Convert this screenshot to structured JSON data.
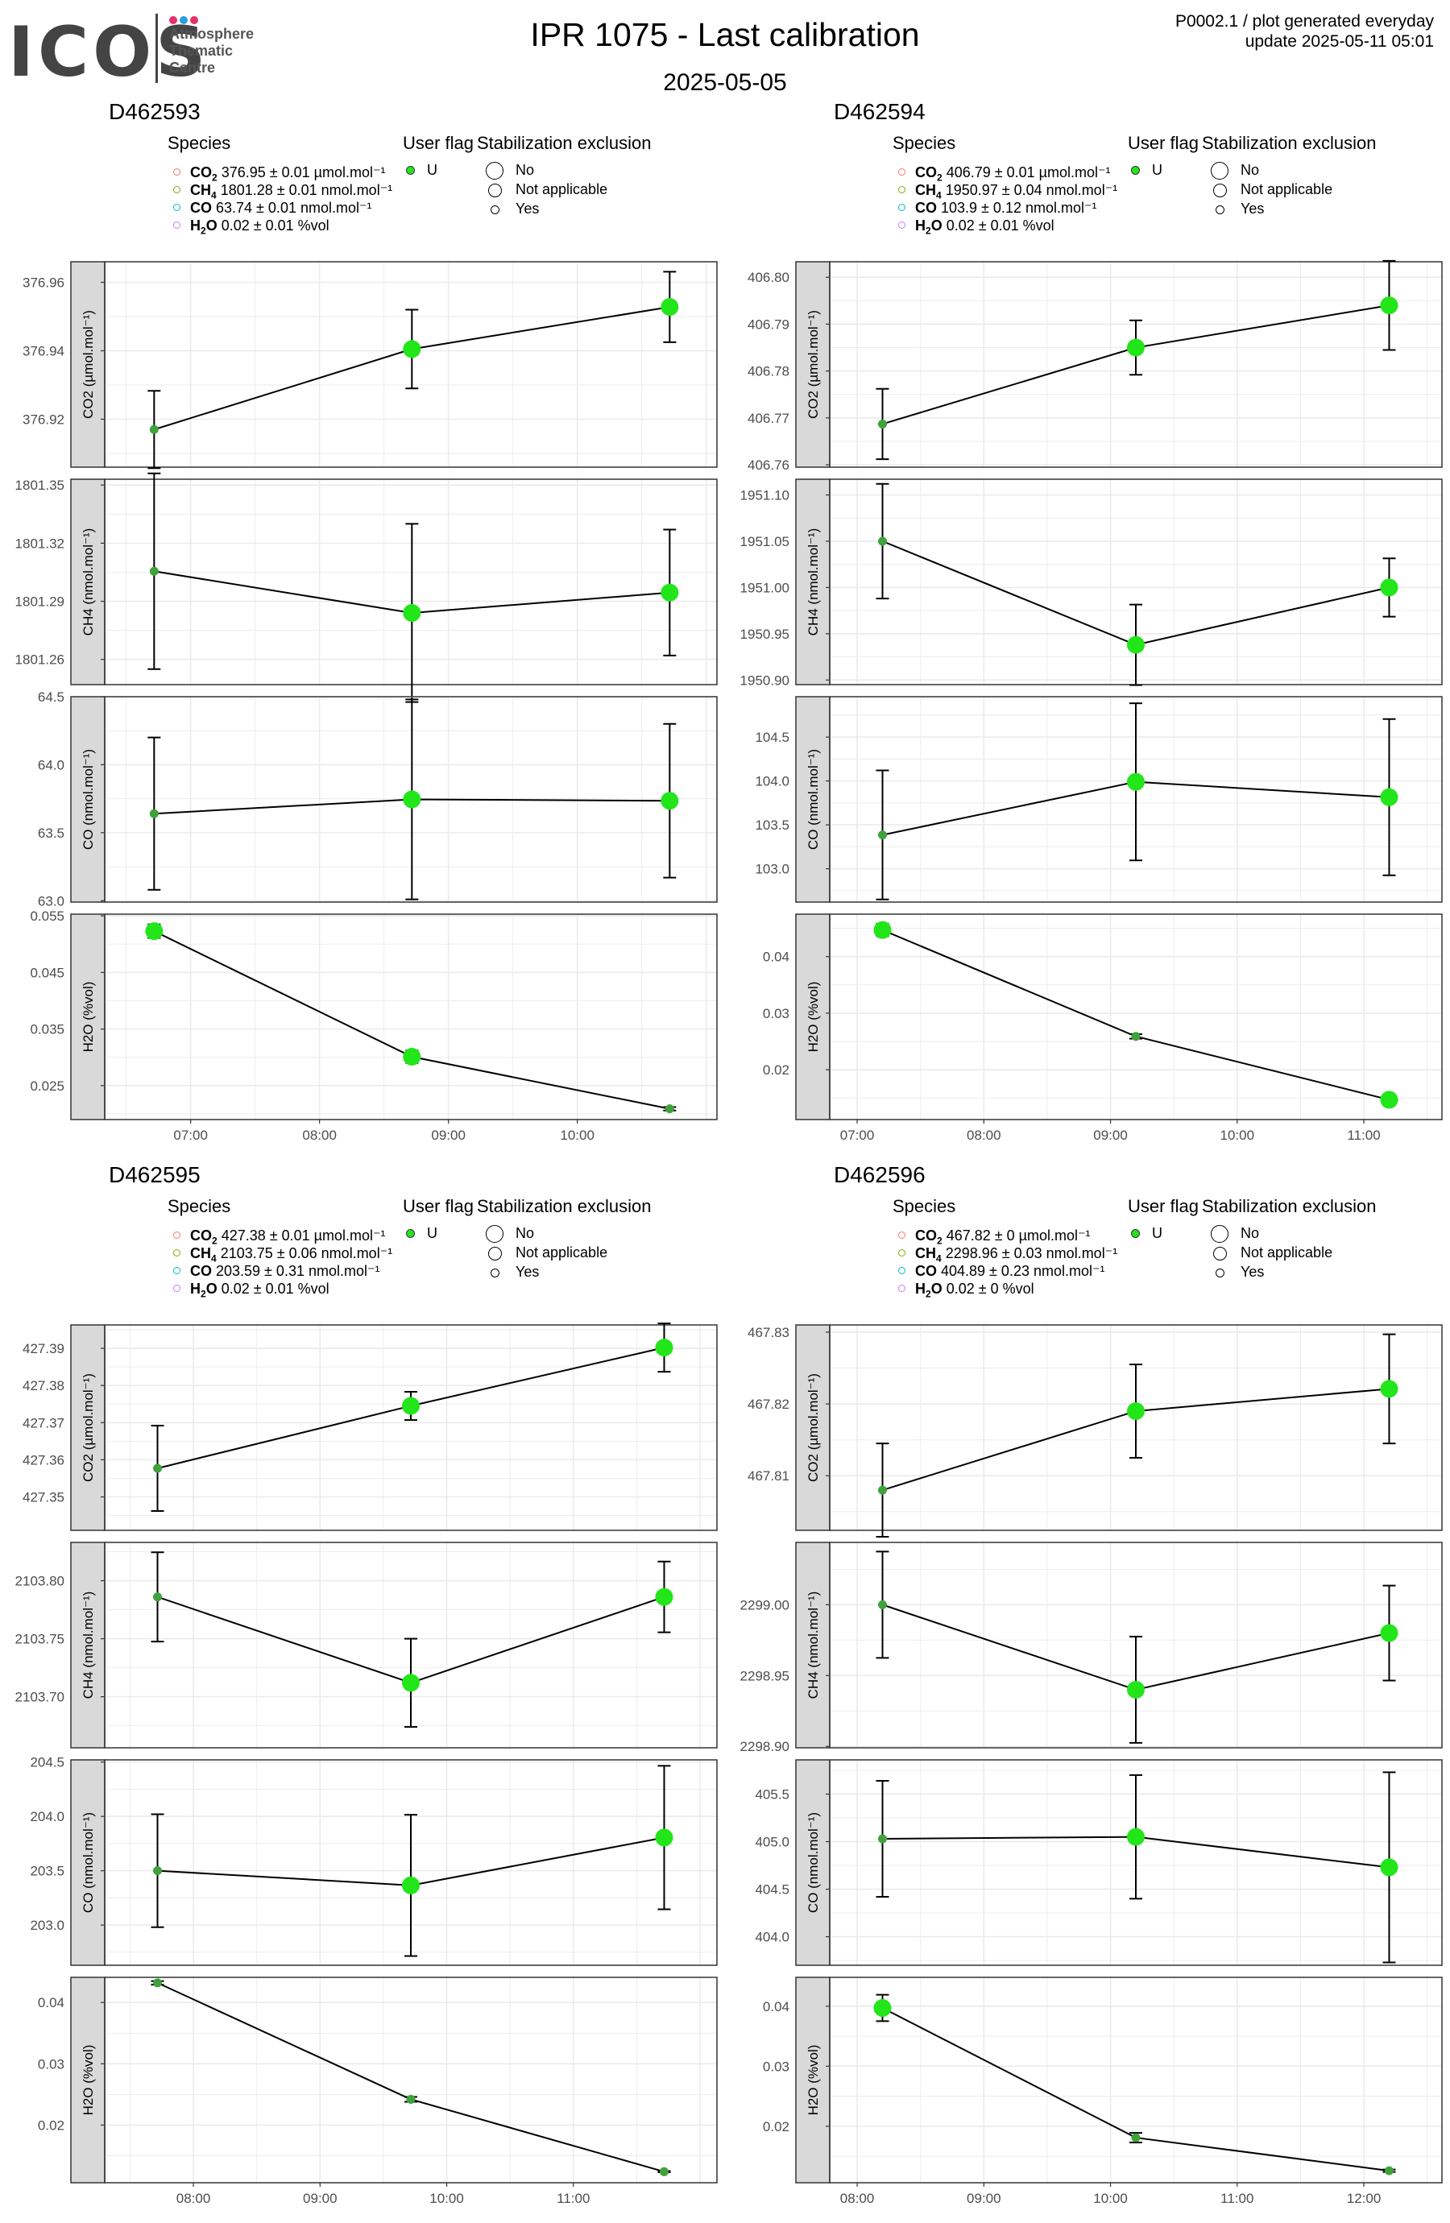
{
  "header": {
    "logo_word": "ICOS",
    "logo_lines": [
      "Atmosphere",
      "Thematic",
      "Centre"
    ],
    "logo_dot_colors": [
      "#e6306e",
      "#2b9be0",
      "#e6306e"
    ],
    "title": "IPR 1075 - Last calibration",
    "date": "2025-05-05",
    "top_right_1": "P0002.1 / plot generated everyday",
    "top_right_2": "update  2025-05-11 05:01"
  },
  "legend_labels": {
    "species": "Species",
    "user_flag": "User flag",
    "stabilization": "Stabilization exclusion",
    "user_flag_value": "U",
    "stab_items": [
      "No",
      "Not applicable",
      "Yes"
    ]
  },
  "colors": {
    "co2": "#f8766d",
    "ch4": "#7cae00",
    "co": "#00bfc4",
    "h2o": "#c77cff",
    "point_large": "#22e61a",
    "point_small": "#3fa23a",
    "strip": "#d9d9d9",
    "grid": "#ebebeb"
  },
  "panels": [
    {
      "id": "D462593",
      "legend": [
        {
          "species": "CO2",
          "value": "376.95 ± 0.01",
          "unit": "µmol.mol⁻¹"
        },
        {
          "species": "CH4",
          "value": "1801.28 ± 0.01",
          "unit": "nmol.mol⁻¹"
        },
        {
          "species": "CO",
          "value": "63.74 ± 0.01",
          "unit": "nmol.mol⁻¹"
        },
        {
          "species": "H2O",
          "value": "0.02 ± 0.01",
          "unit": "%vol"
        }
      ],
      "x_ticks": [
        "07:00",
        "08:00",
        "09:00",
        "10:00"
      ]
    },
    {
      "id": "D462594",
      "legend": [
        {
          "species": "CO2",
          "value": "406.79 ± 0.01",
          "unit": "µmol.mol⁻¹"
        },
        {
          "species": "CH4",
          "value": "1950.97 ± 0.04",
          "unit": "nmol.mol⁻¹"
        },
        {
          "species": "CO",
          "value": "103.9 ± 0.12",
          "unit": "nmol.mol⁻¹"
        },
        {
          "species": "H2O",
          "value": "0.02 ± 0.01",
          "unit": "%vol"
        }
      ],
      "x_ticks": [
        "07:00",
        "08:00",
        "09:00",
        "10:00",
        "11:00"
      ]
    },
    {
      "id": "D462595",
      "legend": [
        {
          "species": "CO2",
          "value": "427.38 ± 0.01",
          "unit": "µmol.mol⁻¹"
        },
        {
          "species": "CH4",
          "value": "2103.75 ± 0.06",
          "unit": "nmol.mol⁻¹"
        },
        {
          "species": "CO",
          "value": "203.59 ± 0.31",
          "unit": "nmol.mol⁻¹"
        },
        {
          "species": "H2O",
          "value": "0.02 ± 0.01",
          "unit": "%vol"
        }
      ],
      "x_ticks": [
        "08:00",
        "09:00",
        "10:00",
        "11:00"
      ]
    },
    {
      "id": "D462596",
      "legend": [
        {
          "species": "CO2",
          "value": "467.82 ± 0",
          "unit": "µmol.mol⁻¹"
        },
        {
          "species": "CH4",
          "value": "2298.96 ± 0.03",
          "unit": "nmol.mol⁻¹"
        },
        {
          "species": "CO",
          "value": "404.89 ± 0.23",
          "unit": "nmol.mol⁻¹"
        },
        {
          "species": "H2O",
          "value": "0.02 ± 0",
          "unit": "%vol"
        }
      ],
      "x_ticks": [
        "08:00",
        "09:00",
        "10:00",
        "11:00",
        "12:00"
      ]
    }
  ],
  "chart_data": [
    {
      "type": "scatter",
      "cylinder": "D462593",
      "x": [
        "06:43",
        "08:43",
        "10:43"
      ],
      "xlim": [
        "06:20",
        "11:05"
      ],
      "facets": [
        {
          "species": "CO2",
          "ylabel": "CO2 (µmol.mol⁻¹)",
          "ylim": [
            376.906,
            376.966
          ],
          "yticks": [
            "376.92",
            "376.94",
            "376.96"
          ],
          "y": [
            376.917,
            376.9405,
            376.9528
          ],
          "err": [
            0.0113,
            0.0115,
            0.0103
          ],
          "stab": [
            "Yes",
            "No",
            "No"
          ]
        },
        {
          "species": "CH4",
          "ylabel": "CH4 (nmol.mol⁻¹)",
          "ylim": [
            1801.247,
            1801.353
          ],
          "yticks": [
            "1801.26",
            "1801.29",
            "1801.32",
            "1801.35"
          ],
          "y": [
            1801.3055,
            1801.284,
            1801.2945
          ],
          "err": [
            0.0505,
            0.046,
            0.0325
          ],
          "stab": [
            "Yes",
            "No",
            "No"
          ]
        },
        {
          "species": "CO",
          "ylabel": "CO (nmol.mol⁻¹)",
          "ylim": [
            62.99,
            64.5
          ],
          "yticks": [
            "63.0",
            "63.5",
            "64.0",
            "64.5"
          ],
          "y": [
            63.64,
            63.745,
            63.735
          ],
          "err": [
            0.56,
            0.735,
            0.565
          ],
          "stab": [
            "Yes",
            "No",
            "No"
          ]
        },
        {
          "species": "H2O",
          "ylabel": "H2O (%vol)",
          "ylim": [
            0.019,
            0.0553
          ],
          "yticks": [
            "0.025",
            "0.035",
            "0.045",
            "0.055"
          ],
          "y": [
            0.0523,
            0.0301,
            0.0209
          ],
          "err": [
            0.0012,
            0.0011,
            0.0003
          ],
          "stab": [
            "No",
            "No",
            "Yes"
          ]
        }
      ]
    },
    {
      "type": "scatter",
      "cylinder": "D462594",
      "x": [
        "07:12",
        "09:12",
        "11:12"
      ],
      "xlim": [
        "06:47",
        "11:37"
      ],
      "facets": [
        {
          "species": "CO2",
          "ylabel": "CO2 (µmol.mol⁻¹)",
          "ylim": [
            406.7595,
            406.8033
          ],
          "yticks": [
            "406.76",
            "406.77",
            "406.78",
            "406.79",
            "406.80"
          ],
          "y": [
            406.7687,
            406.785,
            406.794
          ],
          "err": [
            0.0075,
            0.0058,
            0.0095
          ],
          "stab": [
            "Yes",
            "No",
            "No"
          ]
        },
        {
          "species": "CH4",
          "ylabel": "CH4 (nmol.mol⁻¹)",
          "ylim": [
            1950.895,
            1951.117
          ],
          "yticks": [
            "1950.90",
            "1950.95",
            "1951.00",
            "1951.05",
            "1951.10"
          ],
          "y": [
            1951.05,
            1950.938,
            1951.0
          ],
          "err": [
            0.062,
            0.0435,
            0.0315
          ],
          "stab": [
            "Yes",
            "No",
            "No"
          ]
        },
        {
          "species": "CO",
          "ylabel": "CO (nmol.mol⁻¹)",
          "ylim": [
            102.62,
            104.96
          ],
          "yticks": [
            "103.0",
            "103.5",
            "104.0",
            "104.5"
          ],
          "y": [
            103.385,
            103.99,
            103.815
          ],
          "err": [
            0.735,
            0.895,
            0.89
          ],
          "stab": [
            "Yes",
            "No",
            "No"
          ]
        },
        {
          "species": "H2O",
          "ylabel": "H2O (%vol)",
          "ylim": [
            0.0112,
            0.0475
          ],
          "yticks": [
            "0.02",
            "0.03",
            "0.04"
          ],
          "y": [
            0.0447,
            0.0259,
            0.0147
          ],
          "err": [
            0.0011,
            0.0004,
            0.001
          ],
          "stab": [
            "No",
            "Yes",
            "No"
          ]
        }
      ]
    },
    {
      "type": "scatter",
      "cylinder": "D462595",
      "x": [
        "07:43",
        "09:43",
        "11:43"
      ],
      "xlim": [
        "07:18",
        "12:08"
      ],
      "facets": [
        {
          "species": "CO2",
          "ylabel": "CO2 (µmol.mol⁻¹)",
          "ylim": [
            427.341,
            427.3963
          ],
          "yticks": [
            "427.35",
            "427.36",
            "427.37",
            "427.38",
            "427.39"
          ],
          "y": [
            427.3577,
            427.3745,
            427.3902
          ],
          "err": [
            0.0115,
            0.0038,
            0.0065
          ],
          "stab": [
            "Yes",
            "No",
            "No"
          ]
        },
        {
          "species": "CH4",
          "ylabel": "CH4 (nmol.mol⁻¹)",
          "ylim": [
            2103.656,
            2103.833
          ],
          "yticks": [
            "2103.70",
            "2103.75",
            "2103.80"
          ],
          "y": [
            2103.786,
            2103.712,
            2103.786
          ],
          "err": [
            0.0385,
            0.038,
            0.0305
          ],
          "stab": [
            "Yes",
            "No",
            "No"
          ]
        },
        {
          "species": "CO",
          "ylabel": "CO (nmol.mol⁻¹)",
          "ylim": [
            202.63,
            204.52
          ],
          "yticks": [
            "203.0",
            "203.5",
            "204.0",
            "204.5"
          ],
          "y": [
            203.5,
            203.365,
            203.805
          ],
          "err": [
            0.52,
            0.65,
            0.66
          ],
          "stab": [
            "Yes",
            "No",
            "No"
          ]
        },
        {
          "species": "H2O",
          "ylabel": "H2O (%vol)",
          "ylim": [
            0.0106,
            0.0441
          ],
          "yticks": [
            "0.02",
            "0.03",
            "0.04"
          ],
          "y": [
            0.0432,
            0.0242,
            0.0124
          ],
          "err": [
            0.0003,
            0.0004,
            0.0001
          ],
          "stab": [
            "Yes",
            "Yes",
            "Yes"
          ]
        }
      ]
    },
    {
      "type": "scatter",
      "cylinder": "D462596",
      "x": [
        "08:12",
        "10:12",
        "12:12"
      ],
      "xlim": [
        "07:47",
        "12:37"
      ],
      "facets": [
        {
          "species": "CO2",
          "ylabel": "CO2 (µmol.mol⁻¹)",
          "ylim": [
            467.8024,
            467.831
          ],
          "yticks": [
            "467.81",
            "467.82",
            "467.83"
          ],
          "y": [
            467.808,
            467.819,
            467.8221
          ],
          "err": [
            0.0065,
            0.0065,
            0.0076
          ],
          "stab": [
            "Yes",
            "No",
            "No"
          ]
        },
        {
          "species": "CH4",
          "ylabel": "CH4 (nmol.mol⁻¹)",
          "ylim": [
            2298.899,
            2299.044
          ],
          "yticks": [
            "2298.90",
            "2298.95",
            "2299.00"
          ],
          "y": [
            2299.0,
            2298.94,
            2298.98
          ],
          "err": [
            0.0375,
            0.0375,
            0.0335
          ],
          "stab": [
            "Yes",
            "No",
            "No"
          ]
        },
        {
          "species": "CO",
          "ylabel": "CO (nmol.mol⁻¹)",
          "ylim": [
            403.7,
            405.86
          ],
          "yticks": [
            "404.0",
            "404.5",
            "405.0",
            "405.5"
          ],
          "y": [
            405.03,
            405.05,
            404.73
          ],
          "err": [
            0.61,
            0.65,
            1.0
          ],
          "stab": [
            "Yes",
            "No",
            "No"
          ]
        },
        {
          "species": "H2O",
          "ylabel": "H2O (%vol)",
          "ylim": [
            0.0106,
            0.0448
          ],
          "yticks": [
            "0.02",
            "0.03",
            "0.04"
          ],
          "y": [
            0.0397,
            0.0181,
            0.0126
          ],
          "err": [
            0.0022,
            0.0008,
            0.0002
          ],
          "stab": [
            "No",
            "Yes",
            "Yes"
          ]
        }
      ]
    }
  ]
}
